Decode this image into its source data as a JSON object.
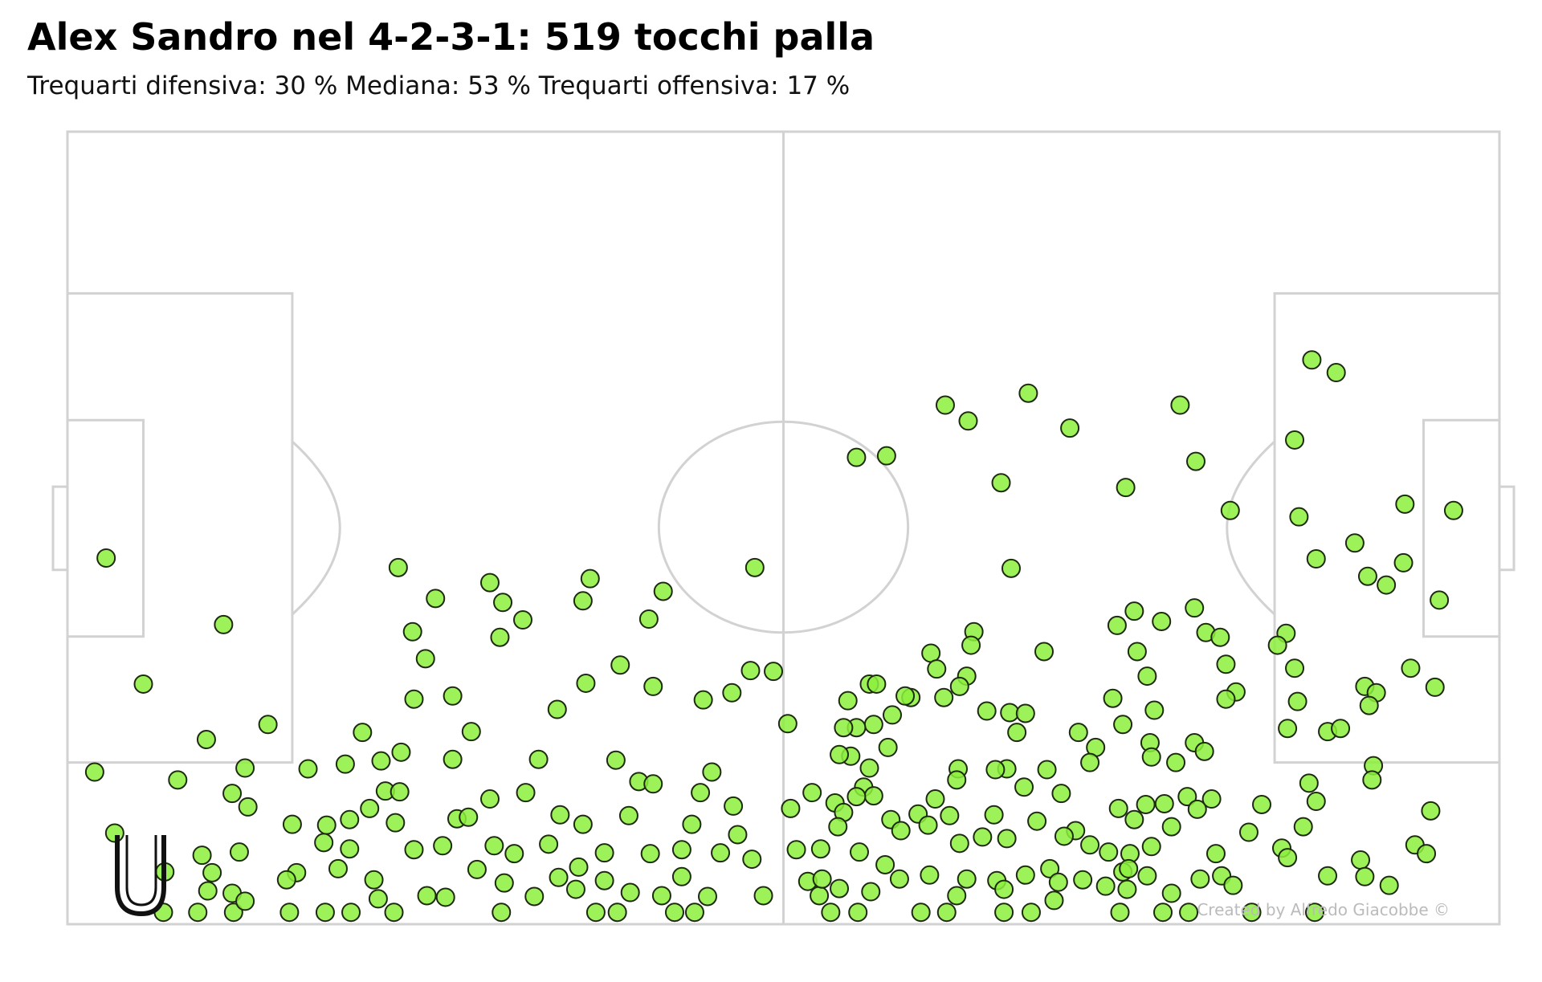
{
  "chart_data": {
    "type": "scatter",
    "title": "Alex Sandro nel 4-2-3-1: 519 tocchi palla",
    "subtitle": "Trequarti difensiva: 30 % Mediana: 53 %  Trequarti offensiva: 17 %",
    "credit": "Created by Alfredo Giacobbe ©",
    "color": "#8cf03c",
    "xlim": [
      0,
      100
    ],
    "ylim": [
      0,
      100
    ],
    "x": [
      2.7,
      10.9,
      5.3,
      9.7,
      14.0,
      1.9,
      7.7,
      12.4,
      3.3,
      6.8,
      6.7,
      9.1,
      11.6,
      15.5,
      18.0,
      19.8,
      22.8,
      30.3,
      36.9,
      38.4,
      42.4,
      43.8,
      53.3,
      55.2,
      59.6,
      61.4,
      65.4,
      67.3,
      73.5,
      76.5,
      78.3,
      82.7,
      87.1,
      23.1,
      25.7,
      29.5,
      30.4,
      30.2,
      31.8,
      36.5,
      36.0,
      41.6,
      40.6,
      48.0,
      24.1,
      25.0,
      26.9,
      24.2,
      38.6,
      40.9,
      36.2,
      47.7,
      49.3,
      46.4,
      44.4,
      34.2,
      28.2,
      20.6,
      23.3,
      21.9,
      26.9,
      16.8,
      19.4,
      32.9,
      38.3,
      45.0,
      39.9,
      40.9,
      22.2,
      23.2,
      29.5,
      32.0,
      44.2,
      11.5,
      12.6,
      21.1,
      15.7,
      19.7,
      22.9,
      18.1,
      27.2,
      34.4,
      39.2,
      46.5,
      50.3,
      43.6,
      17.9,
      24.2,
      19.7,
      26.2,
      28.0,
      29.8,
      33.6,
      36.0,
      37.5,
      40.7,
      42.9,
      45.6,
      47.8,
      46.8,
      9.4,
      12.0,
      10.1,
      16.0,
      15.3,
      18.9,
      21.4,
      9.8,
      11.5,
      12.4,
      21.7,
      25.1,
      26.4,
      28.6,
      30.5,
      32.6,
      34.3,
      35.5,
      37.5,
      39.3,
      41.5,
      42.9,
      44.7,
      48.6,
      31.2,
      35.7,
      55.1,
      57.2,
      61.3,
      62.9,
      67.1,
      70.0,
      65.2,
      73.9,
      77.7,
      78.8,
      81.2,
      65.9,
      86.9,
      88.6,
      85.7,
      86.0,
      87.2,
      89.9,
      93.4,
      96.8,
      90.8,
      92.1,
      93.3,
      95.8,
      85.1,
      84.5,
      85.7,
      90.6,
      91.4,
      90.9,
      93.8,
      95.5,
      85.9,
      85.2,
      88.0,
      88.9,
      91.2,
      91.1,
      86.7,
      87.2,
      83.4,
      82.5,
      86.3,
      95.2,
      94.1,
      94.9,
      84.8,
      85.2,
      90.3,
      88.0,
      90.6,
      92.3,
      74.5,
      73.3,
      76.4,
      78.7,
      79.5,
      80.5,
      80.9,
      74.7,
      75.4,
      81.6,
      80.9,
      68.2,
      63.3,
      63.1,
      60.3,
      60.7,
      62.8,
      62.3,
      61.2,
      58.9,
      58.5,
      56.0,
      56.5,
      54.5,
      57.6,
      56.3,
      55.1,
      54.2,
      57.3,
      54.7,
      53.9,
      64.2,
      65.8,
      66.9,
      66.3,
      70.6,
      73.0,
      73.7,
      75.9,
      71.8,
      71.4,
      75.6,
      75.7,
      78.7,
      79.4,
      77.4,
      68.4,
      65.6,
      64.8,
      62.2,
      56.0,
      55.6,
      56.3,
      55.1,
      52.0,
      53.6,
      54.2,
      53.8,
      50.5,
      62.1,
      60.6,
      66.8,
      69.4,
      75.3,
      73.4,
      76.6,
      78.2,
      79.9,
      77.1,
      78.9,
      74.5,
      64.7,
      61.6,
      59.4,
      57.5,
      58.2,
      60.1,
      67.7,
      70.4,
      75.7,
      80.2,
      71.4,
      69.6,
      65.6,
      63.9,
      62.3,
      55.3,
      52.6,
      50.9,
      57.1,
      60.2,
      62.8,
      64.9,
      66.9,
      68.6,
      70.9,
      73.7,
      75.4,
      79.1,
      80.6,
      81.4,
      77.1,
      74.0,
      72.5,
      69.2,
      68.9,
      65.4,
      62.1,
      58.1,
      56.1,
      52.5,
      51.7,
      52.7,
      53.9,
      74.2,
      72.7,
      74.1
    ],
    "y": [
      46.2,
      37.8,
      30.3,
      23.3,
      25.2,
      19.2,
      18.2,
      19.7,
      11.5,
      6.6,
      1.5,
      1.5,
      1.5,
      1.5,
      1.5,
      1.5,
      1.5,
      1.5,
      1.5,
      1.5,
      1.5,
      1.5,
      1.5,
      1.5,
      1.5,
      1.5,
      1.5,
      1.5,
      1.5,
      1.5,
      1.5,
      1.5,
      1.5,
      45.0,
      41.1,
      43.1,
      40.6,
      36.2,
      38.4,
      43.6,
      40.8,
      42.0,
      38.5,
      45.0,
      36.9,
      33.5,
      28.8,
      28.4,
      32.7,
      30.0,
      30.4,
      32.0,
      31.9,
      29.2,
      28.3,
      27.1,
      24.3,
      24.2,
      21.7,
      20.6,
      20.8,
      19.6,
      20.2,
      20.8,
      20.7,
      19.2,
      18.0,
      17.7,
      16.8,
      16.7,
      15.8,
      16.6,
      16.6,
      16.5,
      14.8,
      14.6,
      12.6,
      13.2,
      12.8,
      12.5,
      13.3,
      13.8,
      13.7,
      14.9,
      25.3,
      12.6,
      10.3,
      9.4,
      9.5,
      9.9,
      13.5,
      9.9,
      10.1,
      12.6,
      9.0,
      8.9,
      9.4,
      9.0,
      8.2,
      11.3,
      8.7,
      9.1,
      6.5,
      6.5,
      5.6,
      7.0,
      5.6,
      4.2,
      3.9,
      2.9,
      3.2,
      3.6,
      3.4,
      6.9,
      5.2,
      3.5,
      5.9,
      4.4,
      5.5,
      4.0,
      3.6,
      6.0,
      3.5,
      3.6,
      8.9,
      7.2,
      58.9,
      59.1,
      65.5,
      63.5,
      67.0,
      62.6,
      55.7,
      55.1,
      65.5,
      58.4,
      52.2,
      44.9,
      71.2,
      69.6,
      61.1,
      51.4,
      46.1,
      48.1,
      53.0,
      52.2,
      43.9,
      42.8,
      45.6,
      40.9,
      36.7,
      35.2,
      32.3,
      30.0,
      29.2,
      27.6,
      32.3,
      29.9,
      28.1,
      24.7,
      24.3,
      24.7,
      20.0,
      18.2,
      17.8,
      15.5,
      15.1,
      11.6,
      12.3,
      14.3,
      10.0,
      8.9,
      9.6,
      8.4,
      8.1,
      6.1,
      6.0,
      4.9,
      39.5,
      37.7,
      38.2,
      39.9,
      36.8,
      36.2,
      32.8,
      34.4,
      31.3,
      29.3,
      28.4,
      34.4,
      36.9,
      35.2,
      34.2,
      32.2,
      31.3,
      30.0,
      28.6,
      28.6,
      28.8,
      30.3,
      30.3,
      28.2,
      26.4,
      25.2,
      24.8,
      24.8,
      22.3,
      21.2,
      21.4,
      26.9,
      26.7,
      26.6,
      24.2,
      24.2,
      28.5,
      25.2,
      27.0,
      22.3,
      20.4,
      22.9,
      21.1,
      22.9,
      21.8,
      20.4,
      19.5,
      19.6,
      19.5,
      19.6,
      19.7,
      17.3,
      16.2,
      16.1,
      16.6,
      15.3,
      14.1,
      12.3,
      14.6,
      18.2,
      15.8,
      17.3,
      16.5,
      15.1,
      14.6,
      15.2,
      16.1,
      15.8,
      12.3,
      14.5,
      13.2,
      13.8,
      13.7,
      13.9,
      13.2,
      11.8,
      12.5,
      13.0,
      11.8,
      9.8,
      8.9,
      10.0,
      11.1,
      10.8,
      11.0,
      10.2,
      9.1,
      9.5,
      9.4,
      7.5,
      6.2,
      5.7,
      5.5,
      6.2,
      7.0,
      5.6,
      6.6,
      6.1,
      5.7,
      6.1,
      4.9,
      3.9,
      4.4,
      4.8,
      5.3,
      3.0,
      4.4,
      3.6,
      5.7,
      4.1,
      3.6,
      5.4,
      5.7,
      4.5,
      8.9,
      9.1,
      7.0
    ]
  }
}
